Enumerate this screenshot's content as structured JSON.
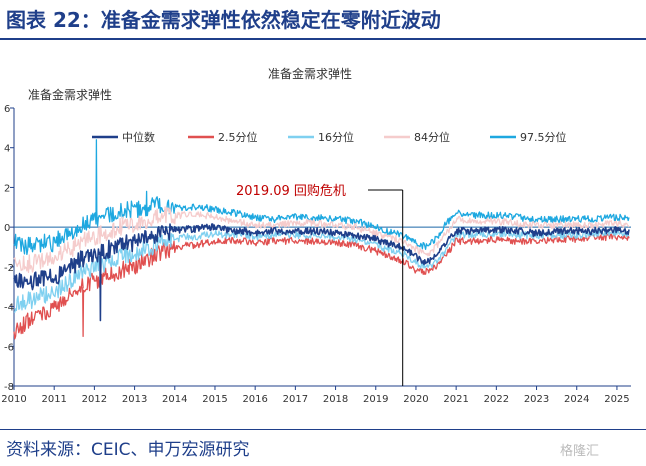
{
  "figure": {
    "heading": "图表 22：准备金需求弹性依然稳定在零附近波动",
    "source": "资料来源：CEIC、申万宏源研究",
    "watermark": "格隆汇"
  },
  "chart_data": {
    "type": "line",
    "title": "准备金需求弹性",
    "ylabel": "准备金需求弹性",
    "xlabel": "",
    "xlim": [
      2010,
      2025.35
    ],
    "ylim": [
      -8,
      6
    ],
    "x_ticks": [
      "2010",
      "2011",
      "2012",
      "2013",
      "2014",
      "2015",
      "2016",
      "2017",
      "2018",
      "2019",
      "2020",
      "2021",
      "2022",
      "2023",
      "2024",
      "2025"
    ],
    "y_ticks": [
      "6",
      "4",
      "2",
      "0",
      "-2",
      "-4",
      "-6",
      "-8"
    ],
    "legend_position": "top",
    "grid": false,
    "annotation": {
      "text": "2019.09  回购危机",
      "x": 2019.67
    },
    "colors": {
      "heading": "#1f3f8a",
      "axis": "#1f3f8a",
      "annotation": "#c00000",
      "zero_line": "#1a66a8"
    },
    "x": [
      2010.0,
      2010.25,
      2010.5,
      2010.75,
      2011.0,
      2011.25,
      2011.5,
      2011.75,
      2012.0,
      2012.25,
      2012.5,
      2012.75,
      2013.0,
      2013.25,
      2013.5,
      2013.75,
      2014.0,
      2014.25,
      2014.5,
      2014.75,
      2015.0,
      2015.25,
      2015.5,
      2015.75,
      2016.0,
      2016.5,
      2017.0,
      2017.5,
      2018.0,
      2018.5,
      2019.0,
      2019.25,
      2019.5,
      2019.75,
      2020.0,
      2020.25,
      2020.5,
      2020.75,
      2021.0,
      2021.5,
      2022.0,
      2022.5,
      2023.0,
      2023.5,
      2024.0,
      2024.5,
      2025.0,
      2025.3
    ],
    "series": [
      {
        "name": "中位数",
        "color": "#1f3f8a",
        "values": [
          -2.6,
          -2.9,
          -2.7,
          -2.5,
          -2.6,
          -2.1,
          -1.9,
          -1.5,
          -1.4,
          -1.2,
          -1.0,
          -0.8,
          -0.8,
          -0.6,
          -0.4,
          -0.2,
          -0.2,
          -0.1,
          -0.1,
          0.0,
          0.0,
          -0.1,
          -0.2,
          -0.2,
          -0.3,
          -0.2,
          -0.2,
          -0.2,
          -0.3,
          -0.4,
          -0.6,
          -0.8,
          -0.9,
          -1.1,
          -1.5,
          -1.8,
          -1.5,
          -0.8,
          -0.2,
          -0.2,
          -0.1,
          -0.2,
          -0.3,
          -0.2,
          -0.2,
          -0.2,
          -0.1,
          -0.2
        ]
      },
      {
        "name": "2.5分位",
        "color": "#e05050",
        "values": [
          -5.2,
          -4.9,
          -4.5,
          -4.3,
          -4.1,
          -3.6,
          -3.3,
          -2.9,
          -2.7,
          -2.5,
          -2.3,
          -2.1,
          -2.0,
          -1.7,
          -1.4,
          -1.2,
          -1.1,
          -0.9,
          -0.9,
          -0.8,
          -0.7,
          -0.7,
          -0.7,
          -0.7,
          -0.8,
          -0.7,
          -0.7,
          -0.7,
          -0.8,
          -0.9,
          -1.2,
          -1.4,
          -1.6,
          -1.8,
          -2.2,
          -2.2,
          -2.0,
          -1.4,
          -0.7,
          -0.7,
          -0.6,
          -0.7,
          -0.7,
          -0.6,
          -0.6,
          -0.5,
          -0.5,
          -0.5
        ]
      },
      {
        "name": "16分位",
        "color": "#7fd0f0",
        "values": [
          -3.9,
          -3.8,
          -3.6,
          -3.4,
          -3.3,
          -2.9,
          -2.6,
          -2.2,
          -2.0,
          -1.8,
          -1.6,
          -1.4,
          -1.4,
          -1.1,
          -0.9,
          -0.7,
          -0.6,
          -0.5,
          -0.5,
          -0.4,
          -0.3,
          -0.4,
          -0.4,
          -0.4,
          -0.5,
          -0.4,
          -0.4,
          -0.4,
          -0.5,
          -0.6,
          -0.9,
          -1.1,
          -1.2,
          -1.4,
          -1.8,
          -2.0,
          -1.8,
          -1.1,
          -0.4,
          -0.4,
          -0.3,
          -0.4,
          -0.4,
          -0.4,
          -0.4,
          -0.3,
          -0.3,
          -0.3
        ]
      },
      {
        "name": "84分位",
        "color": "#f5cccc",
        "values": [
          -1.7,
          -1.9,
          -1.8,
          -1.6,
          -1.6,
          -1.2,
          -1.0,
          -0.6,
          -0.5,
          -0.3,
          -0.1,
          0.1,
          0.1,
          0.3,
          0.5,
          0.6,
          0.6,
          0.6,
          0.6,
          0.6,
          0.5,
          0.4,
          0.3,
          0.2,
          0.1,
          0.1,
          0.2,
          0.2,
          0.1,
          0.0,
          -0.3,
          -0.5,
          -0.6,
          -0.8,
          -1.1,
          -1.4,
          -1.0,
          -0.3,
          0.4,
          0.3,
          0.3,
          0.2,
          0.1,
          0.1,
          0.1,
          0.1,
          0.2,
          0.1
        ]
      },
      {
        "name": "97.5分位",
        "color": "#1ea8e0",
        "values": [
          -0.7,
          -1.0,
          -0.9,
          -0.8,
          -0.8,
          -0.4,
          -0.2,
          0.2,
          0.4,
          0.6,
          0.7,
          0.8,
          0.9,
          1.0,
          1.1,
          1.1,
          1.0,
          1.0,
          1.0,
          1.0,
          0.9,
          0.8,
          0.7,
          0.6,
          0.5,
          0.4,
          0.5,
          0.5,
          0.4,
          0.3,
          0.0,
          -0.2,
          -0.3,
          -0.5,
          -0.8,
          -1.0,
          -0.6,
          0.2,
          0.7,
          0.6,
          0.6,
          0.5,
          0.4,
          0.4,
          0.4,
          0.4,
          0.5,
          0.4
        ]
      }
    ],
    "spikes": [
      {
        "series": "97.5分位",
        "x": 2012.05,
        "value": 4.4
      },
      {
        "series": "中位数",
        "x": 2012.15,
        "value": -4.7
      },
      {
        "series": "2.5分位",
        "x": 2011.72,
        "value": -5.5
      },
      {
        "series": "97.5分位",
        "x": 2013.3,
        "value": 1.8
      }
    ]
  }
}
